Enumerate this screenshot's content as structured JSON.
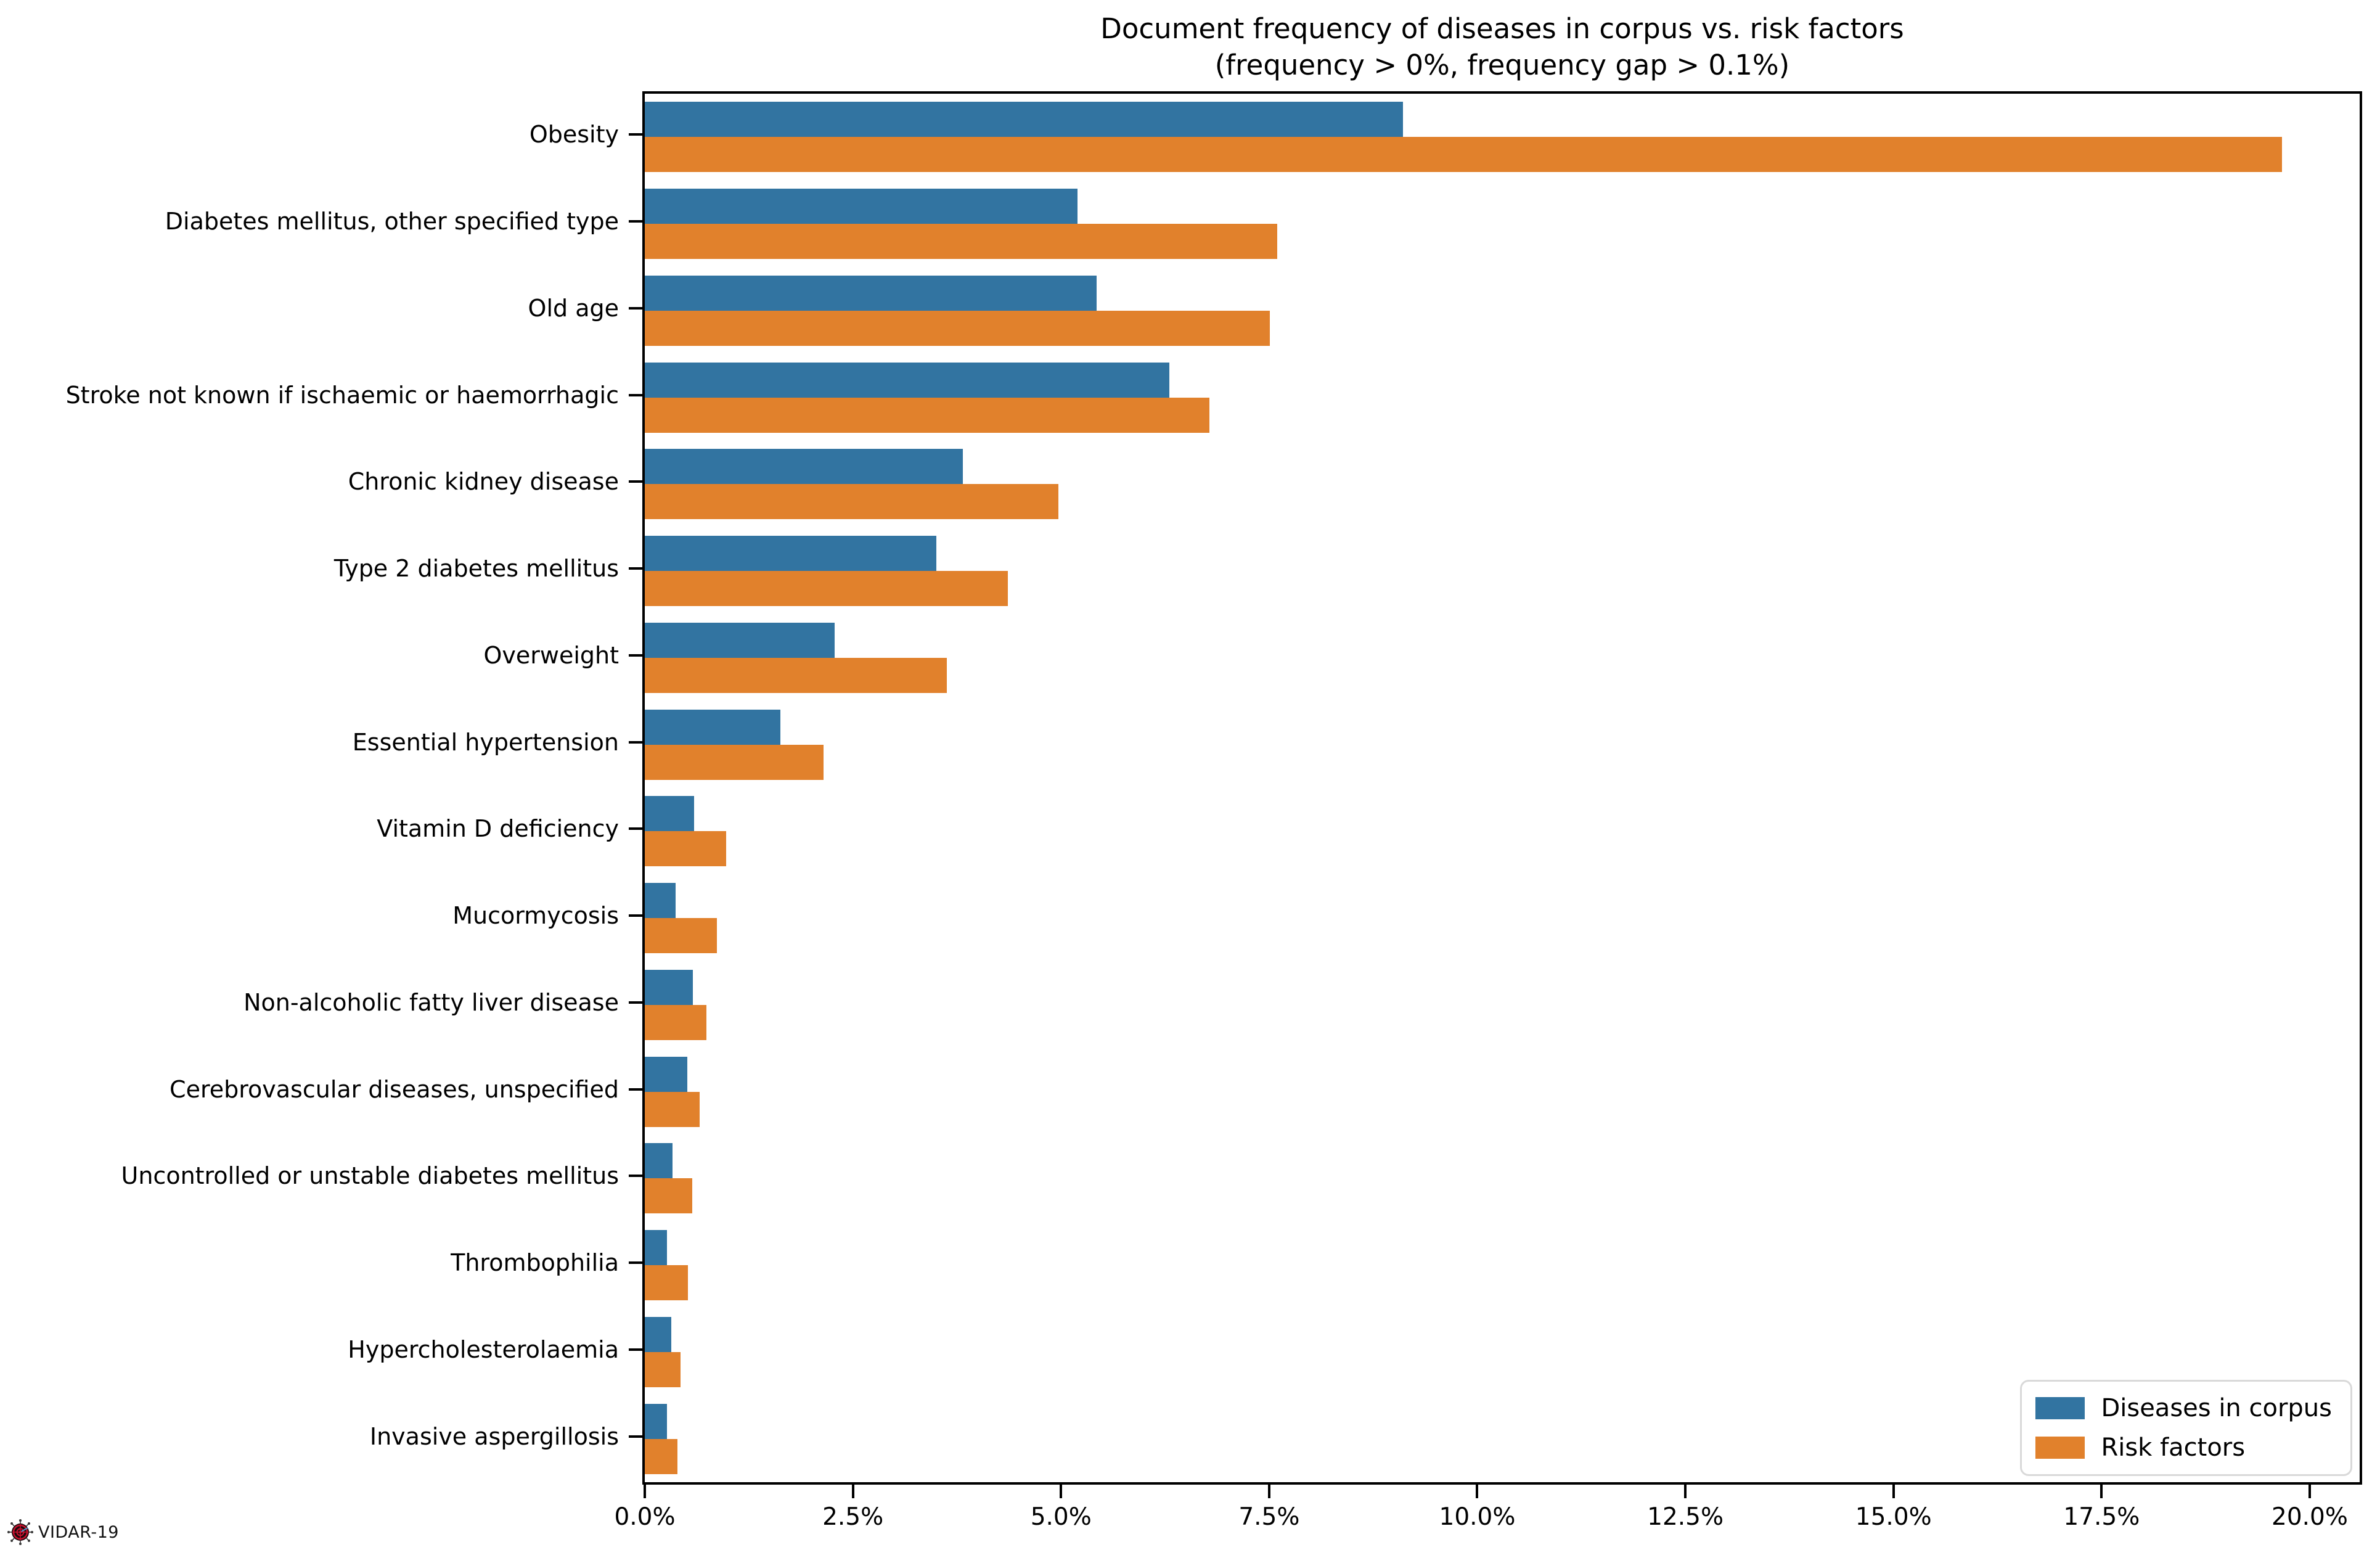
{
  "title": {
    "line1": "Document frequency of diseases in corpus vs. risk factors",
    "line2": "(frequency > 0%, frequency gap > 0.1%)"
  },
  "legend": {
    "items": [
      {
        "label": "Diseases in corpus",
        "color": "#3274A1"
      },
      {
        "label": "Risk factors",
        "color": "#E1812C"
      }
    ]
  },
  "watermark": {
    "icon": "virus-crosshair-icon",
    "text": "VIDAR-19"
  },
  "chart_data": {
    "type": "bar",
    "orientation": "horizontal",
    "title": "Document frequency of diseases in corpus vs. risk factors (frequency > 0%, frequency gap > 0.1%)",
    "categories": [
      "Obesity",
      "Diabetes mellitus, other specified type",
      "Old age",
      "Stroke not known if ischaemic or haemorrhagic",
      "Chronic kidney disease",
      "Type 2 diabetes mellitus",
      "Overweight",
      "Essential hypertension",
      "Vitamin D deficiency",
      "Mucormycosis",
      "Non-alcoholic fatty liver disease",
      "Cerebrovascular diseases, unspecified",
      "Uncontrolled or unstable diabetes mellitus",
      "Thrombophilia",
      "Hypercholesterolaemia",
      "Invasive aspergillosis"
    ],
    "series": [
      {
        "name": "Diseases in corpus",
        "color": "#3274A1",
        "values": [
          9.11,
          5.2,
          5.43,
          6.3,
          3.82,
          3.5,
          2.28,
          1.63,
          0.59,
          0.37,
          0.58,
          0.51,
          0.33,
          0.27,
          0.32,
          0.27
        ]
      },
      {
        "name": "Risk factors",
        "color": "#E1812C",
        "values": [
          19.67,
          7.6,
          7.51,
          6.78,
          4.97,
          4.36,
          3.63,
          2.15,
          0.98,
          0.87,
          0.74,
          0.66,
          0.57,
          0.52,
          0.43,
          0.39
        ]
      }
    ],
    "xlabel": "",
    "ylabel": "",
    "x_ticks": [
      0.0,
      2.5,
      5.0,
      7.5,
      10.0,
      12.5,
      15.0,
      17.5,
      20.0
    ],
    "x_tick_labels": [
      "0.0%",
      "2.5%",
      "5.0%",
      "7.5%",
      "10.0%",
      "12.5%",
      "15.0%",
      "17.5%",
      "20.0%"
    ],
    "xlim": [
      0,
      20.6
    ],
    "grid": false,
    "legend_position": "lower right"
  }
}
